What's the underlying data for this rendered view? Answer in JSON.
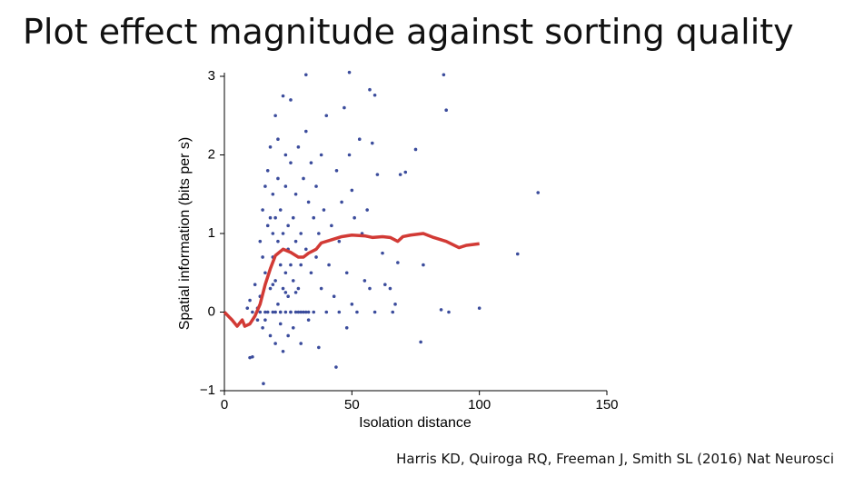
{
  "slide_title": "Plot effect magnitude against sorting quality",
  "citation": "Harris KD, Quiroga RQ, Freeman J, Smith SL (2016) Nat Neurosci",
  "chart_data": {
    "type": "scatter",
    "xlabel": "Isolation distance",
    "ylabel": "Spatial information (bits per s)",
    "xlim": [
      0,
      150
    ],
    "xticks": [
      0,
      50,
      100,
      150
    ],
    "ylim": [
      -1,
      3
    ],
    "yticks": [
      {
        "value": -1,
        "label": "−1"
      },
      0,
      1,
      2,
      3
    ],
    "series": [
      {
        "type": "scatter",
        "color": "#3b4c9c",
        "x": [
          13,
          14,
          14,
          15,
          15,
          16,
          16,
          16,
          17,
          17,
          17,
          18,
          18,
          18,
          18,
          19,
          19,
          19,
          19,
          20,
          20,
          20,
          20,
          21,
          21,
          21,
          21,
          22,
          22,
          22,
          22,
          23,
          23,
          23,
          23,
          24,
          24,
          24,
          24,
          25,
          25,
          25,
          25,
          26,
          26,
          26,
          26,
          27,
          27,
          27,
          28,
          28,
          28,
          29,
          29,
          29,
          30,
          30,
          30,
          31,
          31,
          32,
          32,
          32,
          33,
          33,
          34,
          34,
          35,
          35,
          36,
          36,
          37,
          37,
          38,
          38,
          39,
          40,
          40,
          41,
          42,
          43,
          44,
          45,
          45,
          46,
          47,
          48,
          48,
          49,
          50,
          50,
          51,
          52,
          53,
          54,
          55,
          56,
          57,
          58,
          59,
          60,
          62,
          63,
          65,
          66,
          67,
          12,
          11,
          10,
          9,
          13,
          14,
          15,
          16,
          19,
          20,
          22,
          24,
          26,
          28,
          30,
          33,
          15.3,
          43.8,
          123,
          115,
          100,
          86,
          87,
          49,
          32,
          75,
          69,
          71,
          68,
          78,
          77,
          85,
          88,
          57,
          59,
          11,
          10
        ],
        "values": [
          0.05,
          0.2,
          0.9,
          1.3,
          -0.2,
          0.5,
          1.6,
          -0.1,
          1.1,
          0.0,
          1.8,
          0.3,
          1.2,
          -0.3,
          2.1,
          0.7,
          1.0,
          1.5,
          0.0,
          2.5,
          0.4,
          1.2,
          -0.4,
          0.9,
          0.1,
          1.7,
          2.2,
          0.6,
          0.0,
          1.3,
          -0.15,
          2.75,
          0.3,
          1.0,
          -0.5,
          0.5,
          1.6,
          0.0,
          2.0,
          0.8,
          -0.3,
          1.1,
          0.2,
          1.9,
          0.0,
          0.6,
          2.7,
          1.2,
          0.4,
          -0.2,
          0.0,
          1.5,
          0.9,
          0.3,
          2.1,
          0.0,
          1.0,
          0.6,
          -0.4,
          1.7,
          0.0,
          2.3,
          0.8,
          0.0,
          1.4,
          -0.1,
          0.5,
          1.9,
          0.0,
          1.2,
          0.7,
          1.6,
          -0.45,
          1.0,
          0.3,
          2.0,
          1.3,
          0.0,
          2.5,
          0.6,
          1.1,
          0.2,
          1.8,
          0.0,
          0.9,
          1.4,
          2.6,
          0.5,
          -0.2,
          2.0,
          1.55,
          0.1,
          1.2,
          0.0,
          2.2,
          1.0,
          0.4,
          1.3,
          0.3,
          2.15,
          0.0,
          1.75,
          0.75,
          0.35,
          0.3,
          0.0,
          0.1,
          0.35,
          0.0,
          0.15,
          0.05,
          -0.1,
          0.0,
          0.7,
          0.0,
          0.35,
          0.0,
          0.0,
          0.25,
          0.0,
          0.25,
          0.0,
          0.0,
          -0.91,
          -0.7,
          1.52,
          0.74,
          0.05,
          3.02,
          2.57,
          3.05,
          3.02,
          2.07,
          1.75,
          1.78,
          0.63,
          0.6,
          -0.38,
          0.03,
          0.0,
          2.83,
          2.76,
          -0.57,
          -0.58
        ]
      },
      {
        "type": "line",
        "color": "#d23a35",
        "x": [
          0,
          3,
          5,
          7,
          8,
          10,
          12,
          14,
          16,
          18,
          20,
          23,
          26,
          29,
          31,
          33,
          36,
          38,
          42,
          46,
          50,
          55,
          58,
          62,
          65,
          68,
          70,
          73,
          78,
          82,
          87,
          92,
          95,
          100
        ],
        "values": [
          0,
          -0.1,
          -0.18,
          -0.1,
          -0.18,
          -0.15,
          -0.05,
          0.1,
          0.35,
          0.55,
          0.72,
          0.8,
          0.76,
          0.7,
          0.7,
          0.75,
          0.8,
          0.88,
          0.92,
          0.96,
          0.98,
          0.97,
          0.95,
          0.96,
          0.95,
          0.9,
          0.96,
          0.98,
          1.0,
          0.95,
          0.9,
          0.82,
          0.85,
          0.87
        ]
      }
    ]
  }
}
